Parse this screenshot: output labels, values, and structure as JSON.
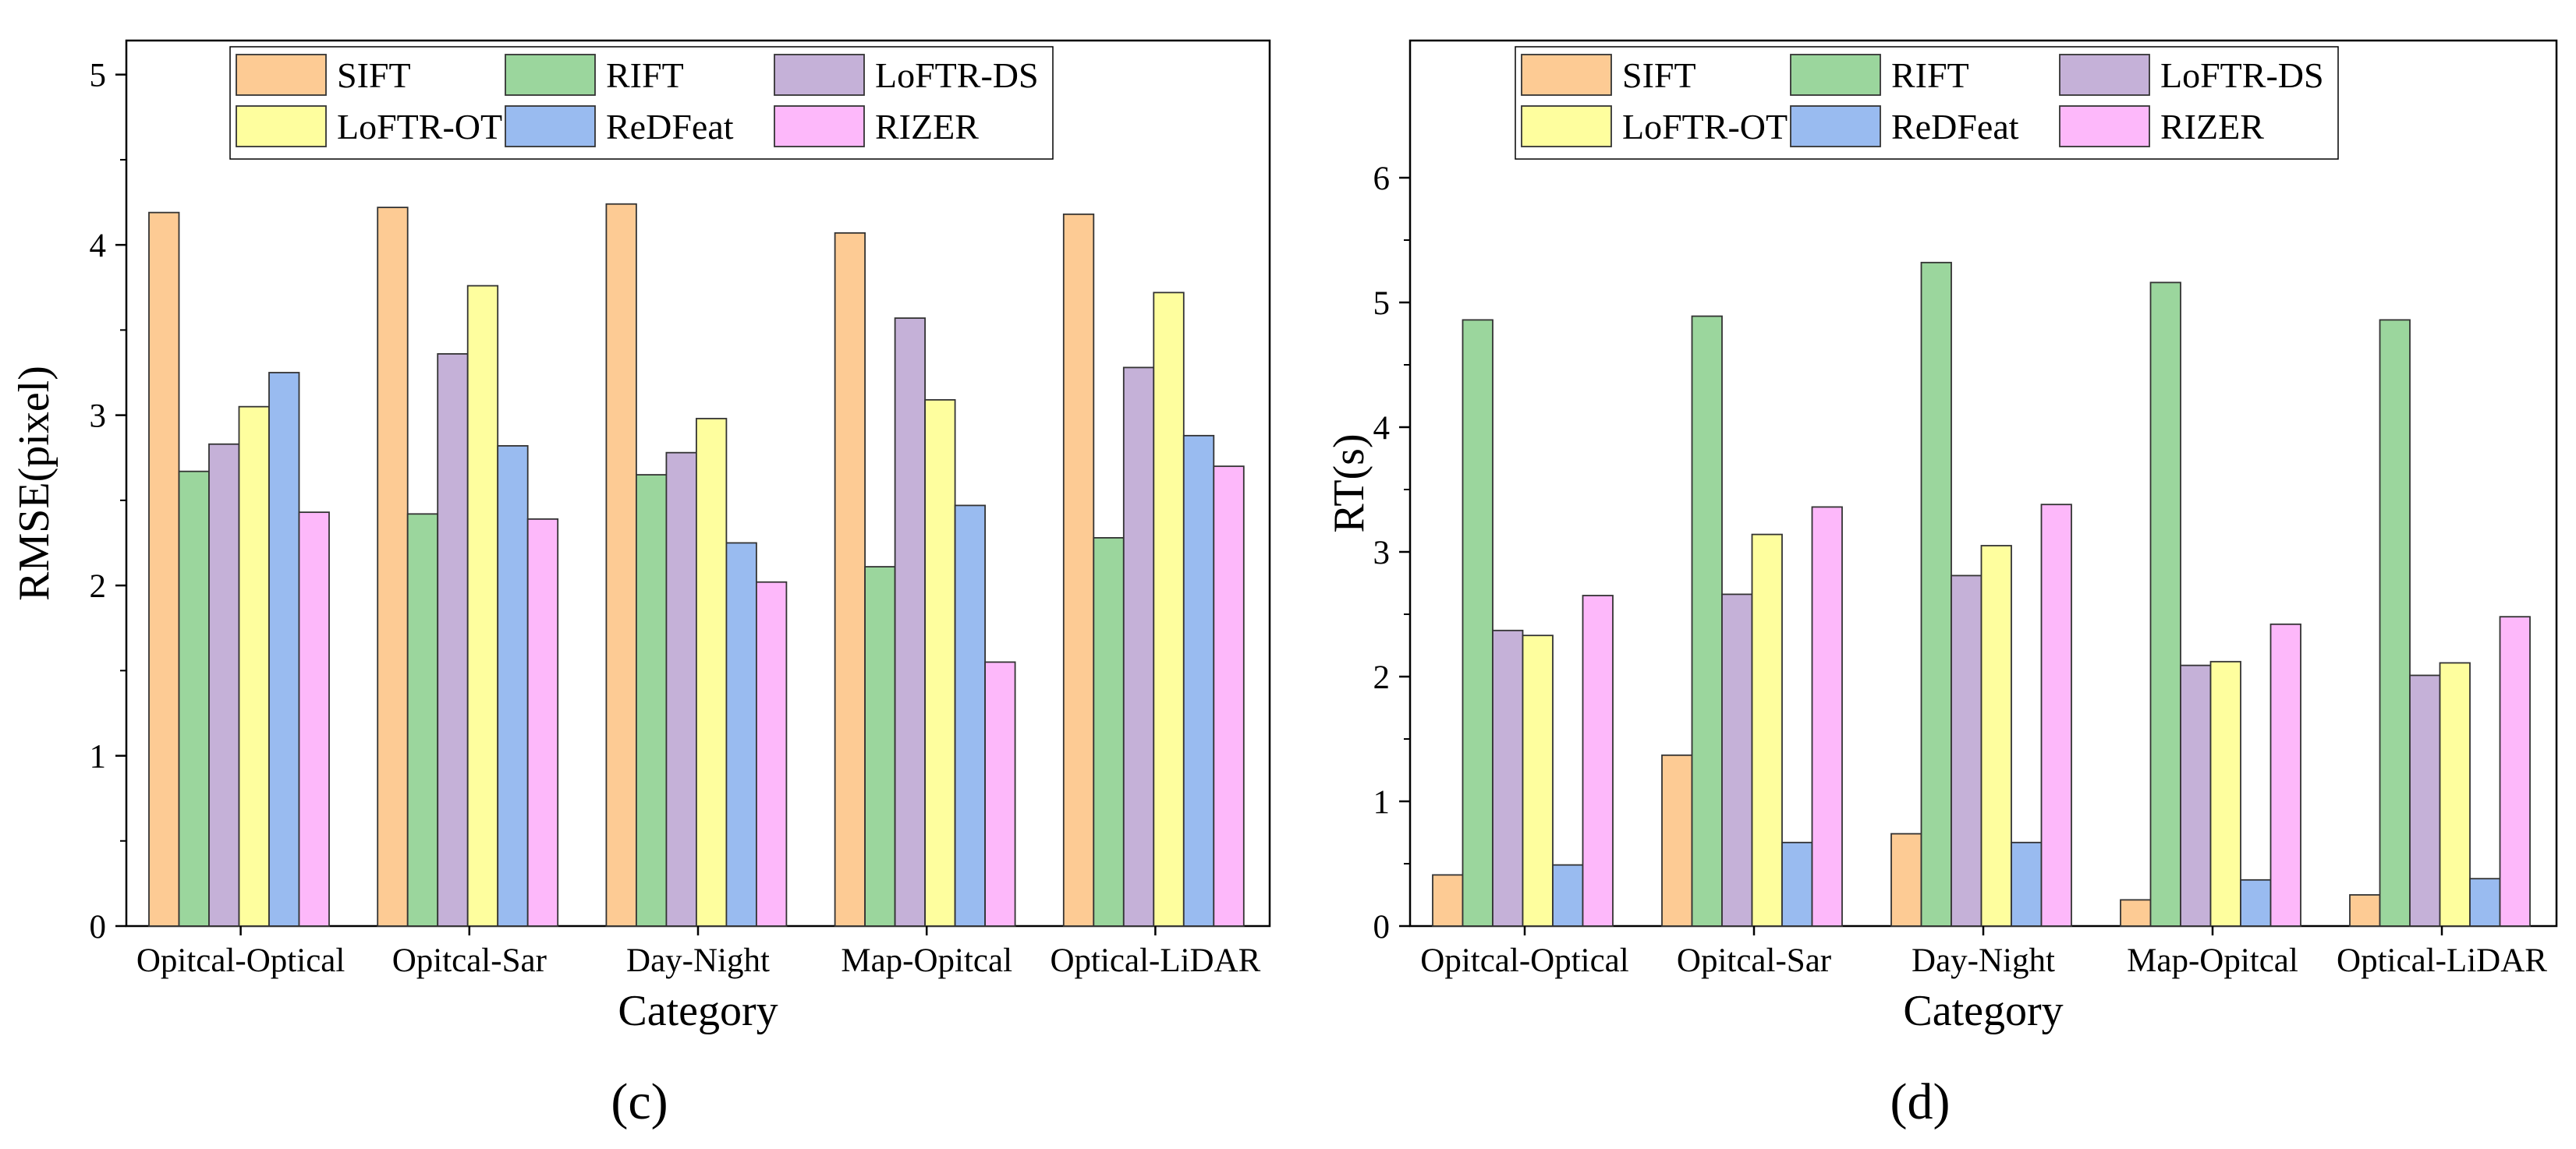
{
  "chart_data": [
    {
      "type": "bar",
      "panel_label": "(c)",
      "xlabel": "Category",
      "ylabel": "RMSE(pixel)",
      "ylim": [
        0,
        5.2
      ],
      "yticks": [
        "0",
        "1",
        "2",
        "3",
        "4",
        "5"
      ],
      "ytick_values": [
        0,
        1,
        2,
        3,
        4,
        5
      ],
      "categories": [
        "Opitcal-Optical",
        "Opitcal-Sar",
        "Day-Night",
        "Map-Opitcal",
        "Optical-LiDAR"
      ],
      "series": [
        {
          "name": "SIFT",
          "color": "#FDCB94",
          "values": [
            4.19,
            4.22,
            4.24,
            4.07,
            4.18
          ]
        },
        {
          "name": "RIFT",
          "color": "#9BD69D",
          "values": [
            2.67,
            2.42,
            2.65,
            2.11,
            2.28
          ]
        },
        {
          "name": "LoFTR-DS",
          "color": "#C5B1D8",
          "values": [
            2.83,
            3.36,
            2.78,
            3.57,
            3.28
          ]
        },
        {
          "name": "LoFTR-OT",
          "color": "#FEFE9E",
          "values": [
            3.05,
            3.76,
            2.98,
            3.09,
            3.72
          ]
        },
        {
          "name": "ReDFeat",
          "color": "#99BBF0",
          "values": [
            3.25,
            2.82,
            2.25,
            2.47,
            2.88
          ]
        },
        {
          "name": "RIZER",
          "color": "#FDB8FA",
          "values": [
            2.43,
            2.39,
            2.02,
            1.55,
            2.7
          ]
        }
      ]
    },
    {
      "type": "bar",
      "panel_label": "(d)",
      "xlabel": "Category",
      "ylabel": "RT(s)",
      "ylim": [
        0,
        7.1
      ],
      "yticks": [
        "0",
        "1",
        "2",
        "3",
        "4",
        "5",
        "6"
      ],
      "ytick_values": [
        0,
        1,
        2,
        3,
        4,
        5,
        6
      ],
      "categories": [
        "Opitcal-Optical",
        "Opitcal-Sar",
        "Day-Night",
        "Map-Opitcal",
        "Optical-LiDAR"
      ],
      "series": [
        {
          "name": "SIFT",
          "color": "#FDCB94",
          "values": [
            0.41,
            1.37,
            0.74,
            0.21,
            0.25
          ]
        },
        {
          "name": "RIFT",
          "color": "#9BD69D",
          "values": [
            4.86,
            4.89,
            5.32,
            5.16,
            4.86
          ]
        },
        {
          "name": "LoFTR-DS",
          "color": "#C5B1D8",
          "values": [
            2.37,
            2.66,
            2.81,
            2.09,
            2.01
          ]
        },
        {
          "name": "LoFTR-OT",
          "color": "#FEFE9E",
          "values": [
            2.33,
            3.14,
            3.05,
            2.12,
            2.11
          ]
        },
        {
          "name": "ReDFeat",
          "color": "#99BBF0",
          "values": [
            0.49,
            0.67,
            0.67,
            0.37,
            0.38
          ]
        },
        {
          "name": "RIZER",
          "color": "#FDB8FA",
          "values": [
            2.65,
            3.36,
            3.38,
            2.42,
            2.48
          ]
        }
      ]
    }
  ]
}
